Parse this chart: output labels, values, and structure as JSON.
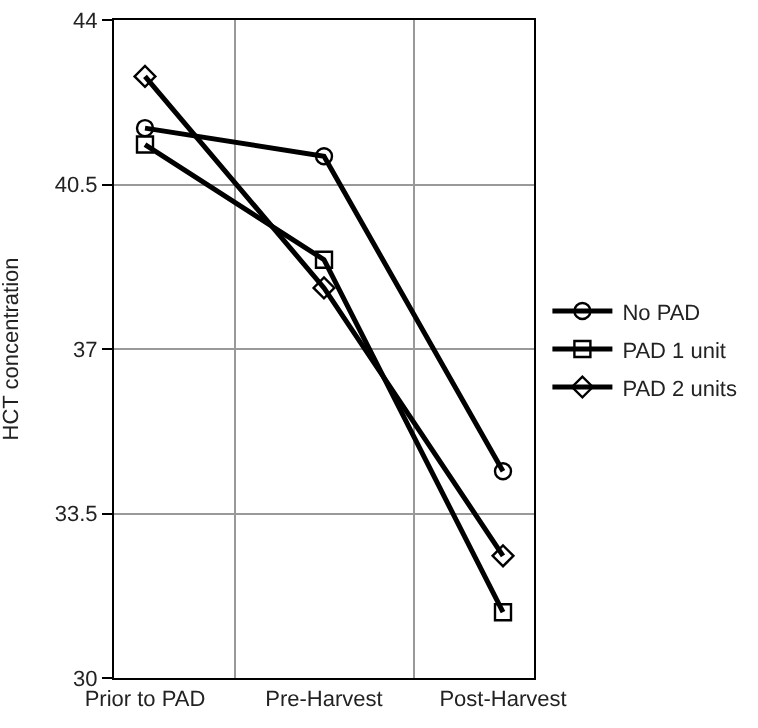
{
  "chart_data": {
    "type": "line",
    "ylabel": "HCT concentration",
    "categories": [
      "Prior to PAD",
      "Pre-Harvest",
      "Post-Harvest"
    ],
    "series": [
      {
        "name": "No PAD",
        "color": "#000000",
        "marker": "circle",
        "values": [
          41.7,
          41.1,
          34.4
        ]
      },
      {
        "name": "PAD 1 unit",
        "color": "#000000",
        "marker": "square",
        "values": [
          41.35,
          38.9,
          31.4
        ]
      },
      {
        "name": "PAD 2 units",
        "color": "#000000",
        "marker": "diamond",
        "values": [
          42.8,
          38.3,
          32.6
        ]
      }
    ],
    "ylim": [
      30,
      44
    ],
    "yticks": [
      30,
      33.5,
      37,
      40.5,
      44
    ],
    "grid": true,
    "legend": "right",
    "line_style": "solid"
  }
}
